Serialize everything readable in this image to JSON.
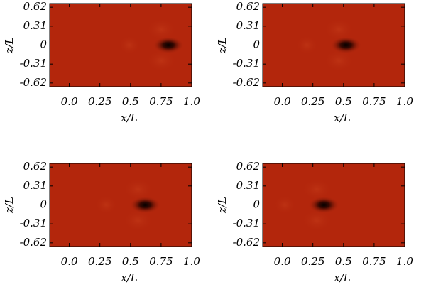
{
  "chart_data": [
    {
      "type": "heatmap",
      "xlabel": "x/L",
      "ylabel": "z/L",
      "color": "#b3260c",
      "xlim": [
        -0.16,
        1.0
      ],
      "ylim": [
        -0.68,
        0.68
      ],
      "xticks": [
        {
          "value": 0,
          "label": "0.0"
        },
        0.25,
        0.5,
        0.75,
        {
          "value": 1,
          "label": "1.0"
        }
      ],
      "yticks": [
        0.62,
        0.31,
        0,
        -0.31,
        -0.62
      ],
      "peak": {
        "x": 0.81,
        "y": 0
      }
    },
    {
      "type": "heatmap",
      "xlabel": "x/L",
      "ylabel": "z/L",
      "color": "#b3260c",
      "xlim": [
        -0.16,
        1.0
      ],
      "ylim": [
        -0.68,
        0.68
      ],
      "xticks": [
        {
          "value": 0,
          "label": "0.0"
        },
        0.25,
        0.5,
        0.75,
        {
          "value": 1,
          "label": "1.0"
        }
      ],
      "yticks": [
        0.62,
        0.31,
        0,
        -0.31,
        -0.62
      ],
      "peak": {
        "x": 0.52,
        "y": 0
      }
    },
    {
      "type": "heatmap",
      "xlabel": "x/L",
      "ylabel": "z/L",
      "color": "#b3260c",
      "xlim": [
        -0.16,
        1.0
      ],
      "ylim": [
        -0.68,
        0.68
      ],
      "xticks": [
        {
          "value": 0,
          "label": "0.0"
        },
        0.25,
        0.5,
        0.75,
        {
          "value": 1,
          "label": "1.0"
        }
      ],
      "yticks": [
        0.62,
        0.31,
        0,
        -0.31,
        -0.62
      ],
      "peak": {
        "x": 0.62,
        "y": 0
      }
    },
    {
      "type": "heatmap",
      "xlabel": "x/L",
      "ylabel": "z/L",
      "color": "#b3260c",
      "xlim": [
        -0.16,
        1.0
      ],
      "ylim": [
        -0.68,
        0.68
      ],
      "xticks": [
        {
          "value": 0,
          "label": "0.0"
        },
        0.25,
        0.5,
        0.75,
        {
          "value": 1,
          "label": "1.0"
        }
      ],
      "yticks": [
        0.62,
        0.31,
        0,
        -0.31,
        -0.62
      ],
      "peak": {
        "x": 0.34,
        "y": 0
      }
    }
  ]
}
